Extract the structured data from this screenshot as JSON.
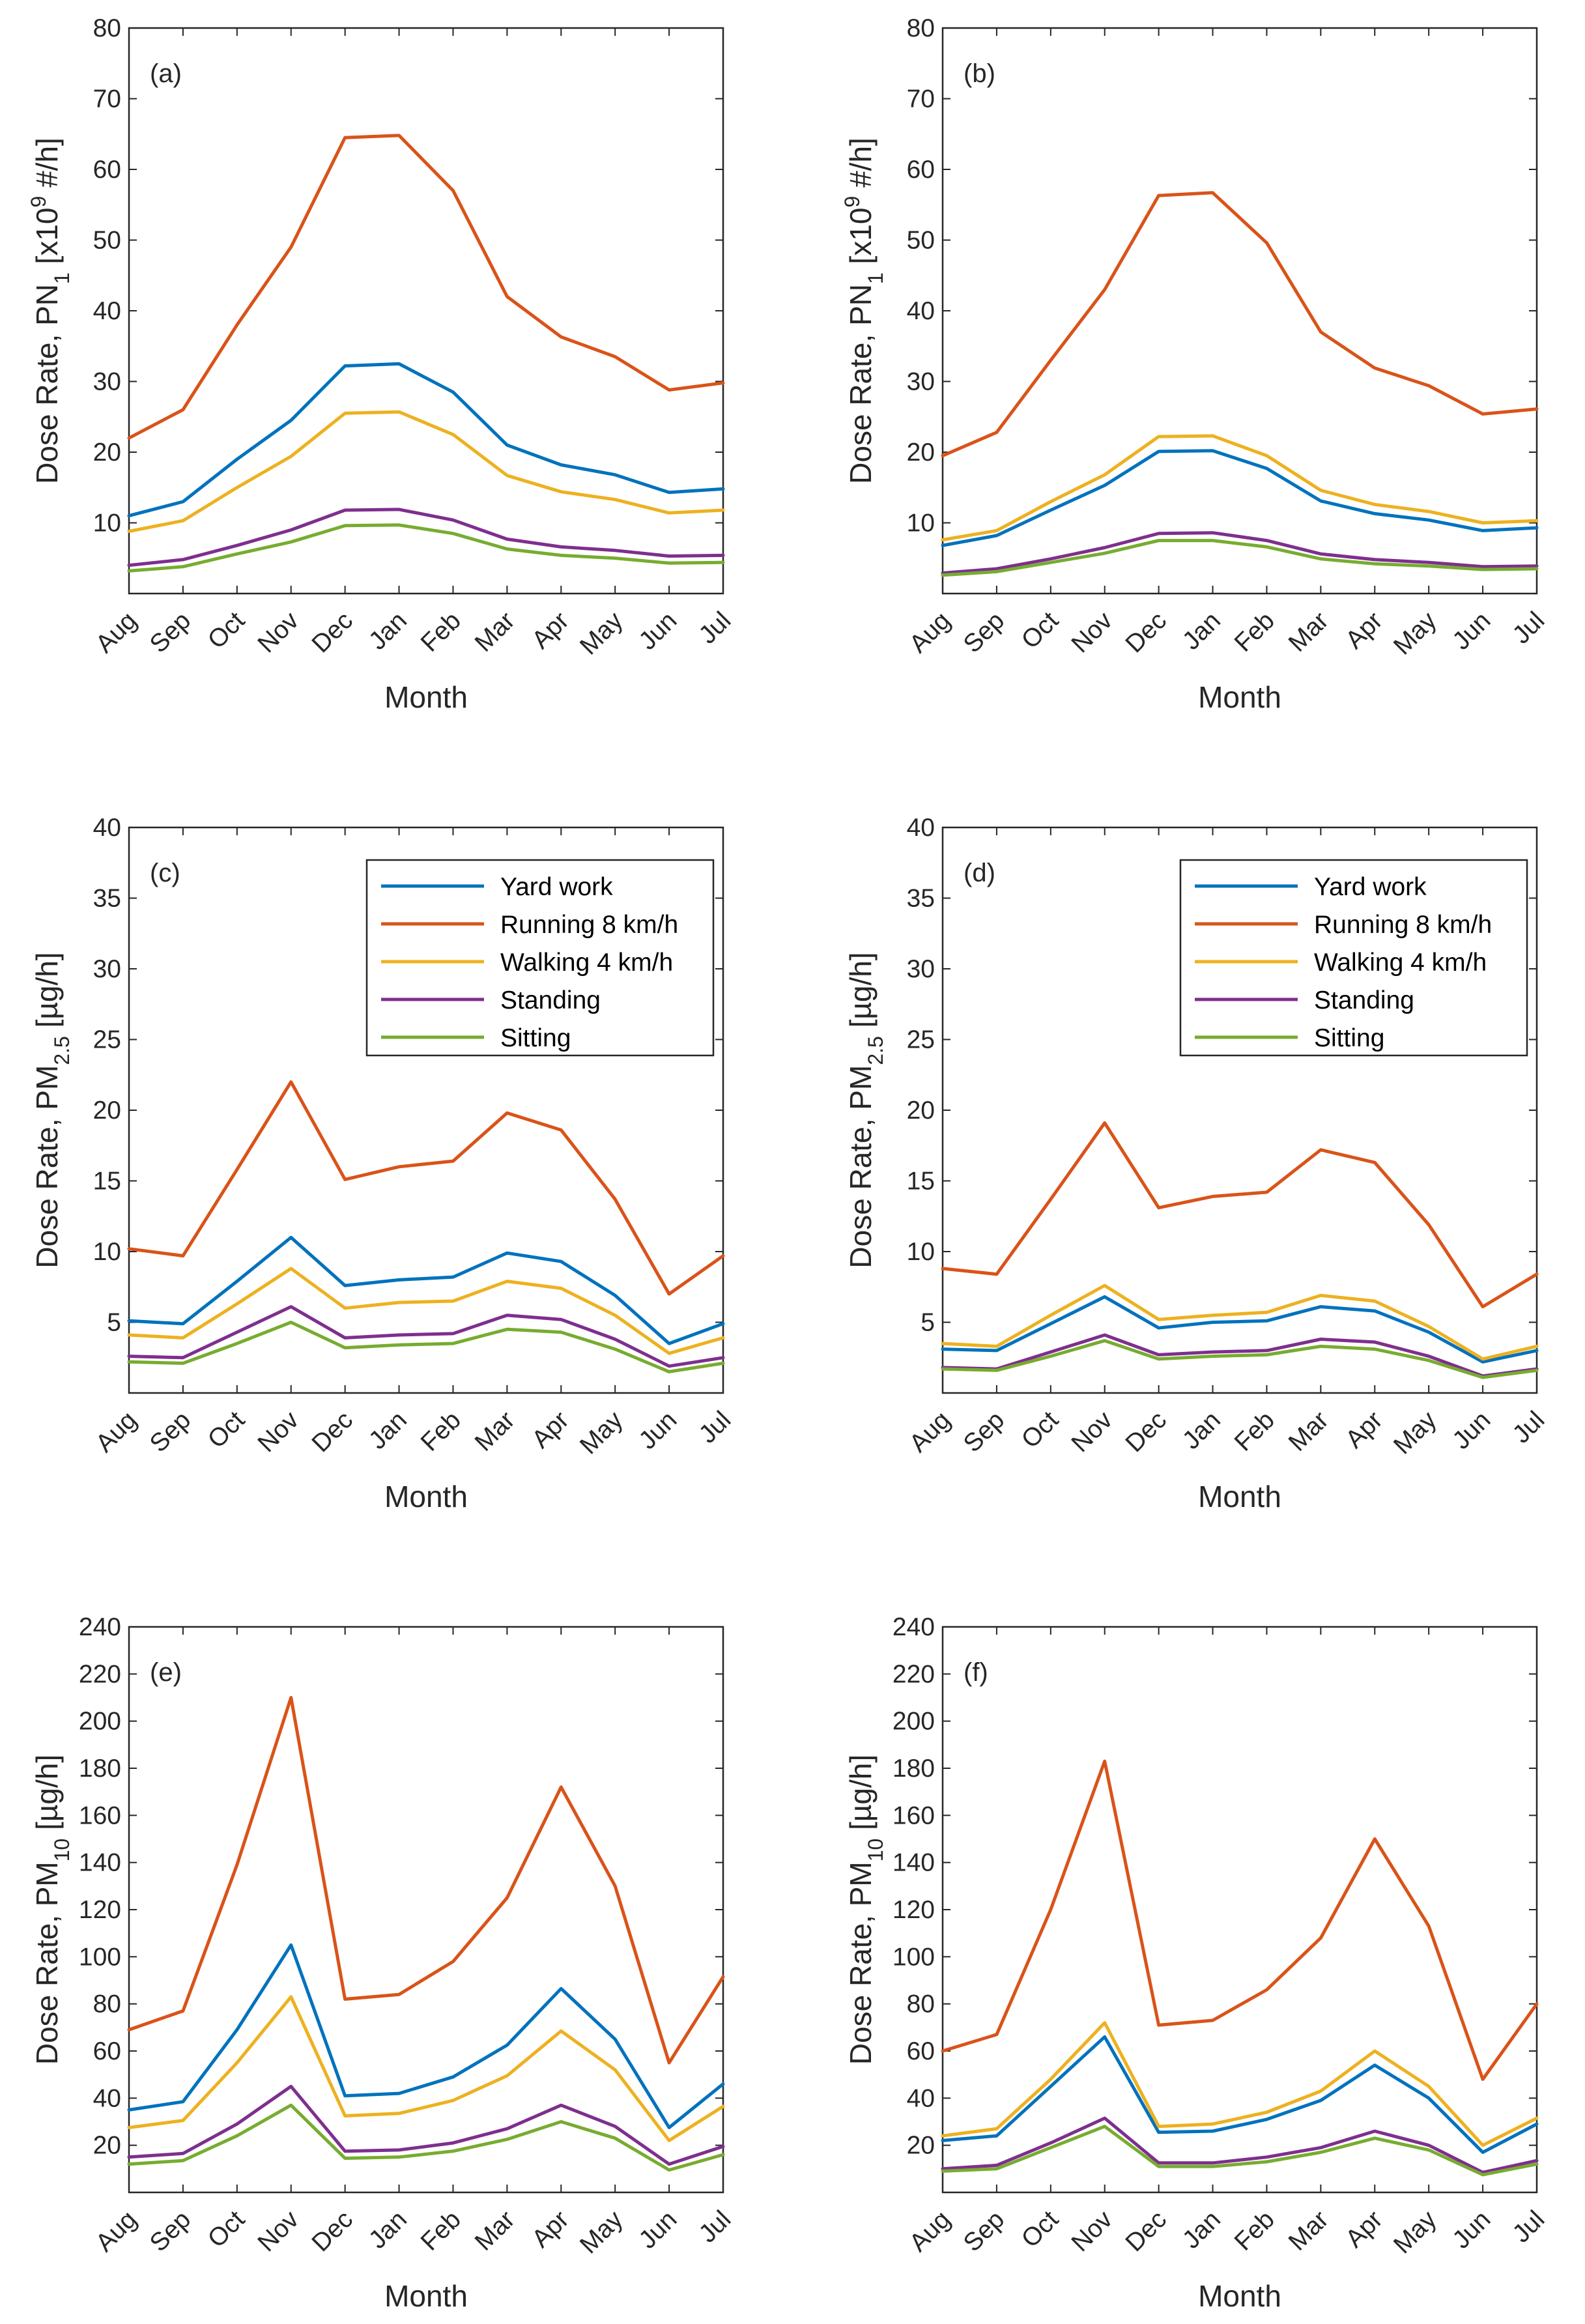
{
  "xlabel": "Month",
  "legend_entries": [
    "Yard work",
    "Running 8 km/h",
    "Walking 4 km/h",
    "Standing",
    "Sitting"
  ],
  "series_colors": [
    "#0072bd",
    "#d95319",
    "#edb120",
    "#7e2f8e",
    "#77ac30"
  ],
  "chart_data": [
    {
      "type": "line",
      "panel_label": "(a)",
      "ylabel_prefix": "Dose Rate, PN",
      "ylabel_sub": "1",
      "ylabel_mid": " [x10",
      "ylabel_sup": "9",
      "ylabel_suffix": " #/h]",
      "categories": [
        "Aug",
        "Sep",
        "Oct",
        "Nov",
        "Dec",
        "Jan",
        "Feb",
        "Mar",
        "Apr",
        "May",
        "Jun",
        "Jul"
      ],
      "ylim": [
        0,
        80
      ],
      "yticks": [
        10,
        20,
        30,
        40,
        50,
        60,
        70,
        80
      ],
      "legend": false,
      "series": [
        {
          "name": "Yard work",
          "values": [
            11,
            13,
            19,
            24.5,
            32.2,
            32.5,
            28.5,
            21,
            18.2,
            16.8,
            14.3,
            14.8
          ]
        },
        {
          "name": "Running 8 km/h",
          "values": [
            22,
            26,
            38,
            49,
            64.5,
            64.8,
            57,
            42,
            36.3,
            33.5,
            28.8,
            29.8
          ]
        },
        {
          "name": "Walking 4 km/h",
          "values": [
            8.8,
            10.3,
            15,
            19.4,
            25.5,
            25.7,
            22.5,
            16.7,
            14.4,
            13.3,
            11.4,
            11.8
          ]
        },
        {
          "name": "Standing",
          "values": [
            4,
            4.8,
            6.8,
            9,
            11.8,
            11.9,
            10.4,
            7.7,
            6.6,
            6.1,
            5.3,
            5.4
          ]
        },
        {
          "name": "Sitting",
          "values": [
            3.2,
            3.8,
            5.6,
            7.3,
            9.6,
            9.7,
            8.5,
            6.3,
            5.4,
            5,
            4.3,
            4.4
          ]
        }
      ]
    },
    {
      "type": "line",
      "panel_label": "(b)",
      "ylabel_prefix": "Dose Rate, PN",
      "ylabel_sub": "1",
      "ylabel_mid": " [x10",
      "ylabel_sup": "9",
      "ylabel_suffix": " #/h]",
      "categories": [
        "Aug",
        "Sep",
        "Oct",
        "Nov",
        "Dec",
        "Jan",
        "Feb",
        "Mar",
        "Apr",
        "May",
        "Jun",
        "Jul"
      ],
      "ylim": [
        0,
        80
      ],
      "yticks": [
        10,
        20,
        30,
        40,
        50,
        60,
        70,
        80
      ],
      "legend": false,
      "series": [
        {
          "name": "Yard work",
          "values": [
            6.8,
            8.2,
            11.8,
            15.3,
            20.1,
            20.2,
            17.7,
            13.1,
            11.3,
            10.4,
            8.9,
            9.3
          ]
        },
        {
          "name": "Running 8 km/h",
          "values": [
            19.5,
            22.8,
            33,
            43,
            56.3,
            56.7,
            49.6,
            37,
            31.9,
            29.4,
            25.4,
            26.1
          ]
        },
        {
          "name": "Walking 4 km/h",
          "values": [
            7.6,
            8.9,
            13,
            16.8,
            22.2,
            22.3,
            19.5,
            14.6,
            12.6,
            11.6,
            10,
            10.3
          ]
        },
        {
          "name": "Standing",
          "values": [
            2.9,
            3.5,
            4.9,
            6.5,
            8.5,
            8.6,
            7.5,
            5.6,
            4.8,
            4.4,
            3.8,
            3.9
          ]
        },
        {
          "name": "Sitting",
          "values": [
            2.6,
            3.1,
            4.4,
            5.7,
            7.5,
            7.5,
            6.6,
            4.9,
            4.2,
            3.9,
            3.4,
            3.5
          ]
        }
      ]
    },
    {
      "type": "line",
      "panel_label": "(c)",
      "ylabel_prefix": "Dose Rate, PM",
      "ylabel_sub": "2.5",
      "ylabel_mid": "",
      "ylabel_sup": "",
      "ylabel_suffix": " [µg/h]",
      "categories": [
        "Aug",
        "Sep",
        "Oct",
        "Nov",
        "Dec",
        "Jan",
        "Feb",
        "Mar",
        "Apr",
        "May",
        "Jun",
        "Jul"
      ],
      "ylim": [
        0,
        40
      ],
      "yticks": [
        5,
        10,
        15,
        20,
        25,
        30,
        35,
        40
      ],
      "legend": true,
      "series": [
        {
          "name": "Yard work",
          "values": [
            5.1,
            4.9,
            7.9,
            11,
            7.6,
            8,
            8.2,
            9.9,
            9.3,
            6.9,
            3.5,
            4.9
          ]
        },
        {
          "name": "Running 8 km/h",
          "values": [
            10.2,
            9.7,
            15.8,
            22,
            15.1,
            16,
            16.4,
            19.8,
            18.6,
            13.7,
            7,
            9.7
          ]
        },
        {
          "name": "Walking 4 km/h",
          "values": [
            4.1,
            3.9,
            6.3,
            8.8,
            6,
            6.4,
            6.5,
            7.9,
            7.4,
            5.5,
            2.8,
            3.9
          ]
        },
        {
          "name": "Standing",
          "values": [
            2.6,
            2.5,
            4.3,
            6.1,
            3.9,
            4.1,
            4.2,
            5.5,
            5.2,
            3.8,
            1.9,
            2.5
          ]
        },
        {
          "name": "Sitting",
          "values": [
            2.2,
            2.1,
            3.5,
            5,
            3.2,
            3.4,
            3.5,
            4.5,
            4.3,
            3.1,
            1.5,
            2.1
          ]
        }
      ]
    },
    {
      "type": "line",
      "panel_label": "(d)",
      "ylabel_prefix": "Dose Rate, PM",
      "ylabel_sub": "2.5",
      "ylabel_mid": "",
      "ylabel_sup": "",
      "ylabel_suffix": " [µg/h]",
      "categories": [
        "Aug",
        "Sep",
        "Oct",
        "Nov",
        "Dec",
        "Jan",
        "Feb",
        "Mar",
        "Apr",
        "May",
        "Jun",
        "Jul"
      ],
      "ylim": [
        0,
        40
      ],
      "yticks": [
        5,
        10,
        15,
        20,
        25,
        30,
        35,
        40
      ],
      "legend": true,
      "series": [
        {
          "name": "Yard work",
          "values": [
            3.1,
            3,
            4.9,
            6.8,
            4.6,
            5,
            5.1,
            6.1,
            5.8,
            4.3,
            2.2,
            3
          ]
        },
        {
          "name": "Running 8 km/h",
          "values": [
            8.8,
            8.4,
            13.7,
            19.1,
            13.1,
            13.9,
            14.2,
            17.2,
            16.3,
            11.9,
            6.1,
            8.4
          ]
        },
        {
          "name": "Walking 4 km/h",
          "values": [
            3.5,
            3.3,
            5.5,
            7.6,
            5.2,
            5.5,
            5.7,
            6.9,
            6.5,
            4.7,
            2.4,
            3.3
          ]
        },
        {
          "name": "Standing",
          "values": [
            1.8,
            1.7,
            2.9,
            4.1,
            2.7,
            2.9,
            3,
            3.8,
            3.6,
            2.6,
            1.2,
            1.7
          ]
        },
        {
          "name": "Sitting",
          "values": [
            1.7,
            1.6,
            2.6,
            3.7,
            2.4,
            2.6,
            2.7,
            3.3,
            3.1,
            2.3,
            1.1,
            1.6
          ]
        }
      ]
    },
    {
      "type": "line",
      "panel_label": "(e)",
      "ylabel_prefix": "Dose Rate, PM",
      "ylabel_sub": "10",
      "ylabel_mid": "",
      "ylabel_sup": "",
      "ylabel_suffix": " [µg/h]",
      "categories": [
        "Aug",
        "Sep",
        "Oct",
        "Nov",
        "Dec",
        "Jan",
        "Feb",
        "Mar",
        "Apr",
        "May",
        "Jun",
        "Jul"
      ],
      "ylim": [
        0,
        240
      ],
      "yticks": [
        20,
        40,
        60,
        80,
        100,
        120,
        140,
        160,
        180,
        200,
        220,
        240
      ],
      "legend": false,
      "series": [
        {
          "name": "Yard work",
          "values": [
            35,
            38.5,
            69,
            105,
            41,
            42,
            49,
            62.5,
            86.5,
            65,
            27.5,
            46
          ]
        },
        {
          "name": "Running 8 km/h",
          "values": [
            69,
            77,
            139,
            210,
            82,
            84,
            98,
            125,
            172,
            130,
            55,
            91.5
          ]
        },
        {
          "name": "Walking 4 km/h",
          "values": [
            27.5,
            30.5,
            55,
            83,
            32.5,
            33.5,
            39,
            49.5,
            68.5,
            52,
            22,
            36.5
          ]
        },
        {
          "name": "Standing",
          "values": [
            15,
            16.5,
            29,
            45,
            17.5,
            18,
            21,
            27,
            37,
            28,
            12,
            19.5
          ]
        },
        {
          "name": "Sitting",
          "values": [
            12,
            13.5,
            24,
            37,
            14.5,
            15,
            17.5,
            22.5,
            30,
            23,
            9.5,
            16
          ]
        }
      ]
    },
    {
      "type": "line",
      "panel_label": "(f)",
      "ylabel_prefix": "Dose Rate, PM",
      "ylabel_sub": "10",
      "ylabel_mid": "",
      "ylabel_sup": "",
      "ylabel_suffix": " [µg/h]",
      "categories": [
        "Aug",
        "Sep",
        "Oct",
        "Nov",
        "Dec",
        "Jan",
        "Feb",
        "Mar",
        "Apr",
        "May",
        "Jun",
        "Jul"
      ],
      "ylim": [
        0,
        240
      ],
      "yticks": [
        20,
        40,
        60,
        80,
        100,
        120,
        140,
        160,
        180,
        200,
        220,
        240
      ],
      "legend": false,
      "series": [
        {
          "name": "Yard work",
          "values": [
            22,
            24,
            45,
            66,
            25.5,
            26,
            31,
            39,
            54,
            40,
            17,
            29
          ]
        },
        {
          "name": "Running 8 km/h",
          "values": [
            60,
            67,
            120,
            183,
            71,
            73,
            86,
            108,
            150,
            113,
            48,
            80
          ]
        },
        {
          "name": "Walking 4 km/h",
          "values": [
            24,
            27,
            48,
            72,
            28,
            29,
            34,
            43,
            60,
            45,
            20,
            31.5
          ]
        },
        {
          "name": "Standing",
          "values": [
            10,
            11.5,
            21,
            31.5,
            12.5,
            12.5,
            15,
            19,
            26,
            20,
            8.5,
            13.5
          ]
        },
        {
          "name": "Sitting",
          "values": [
            9,
            10,
            19,
            28,
            11,
            11,
            13,
            17,
            23,
            18,
            7.5,
            12
          ]
        }
      ]
    }
  ]
}
